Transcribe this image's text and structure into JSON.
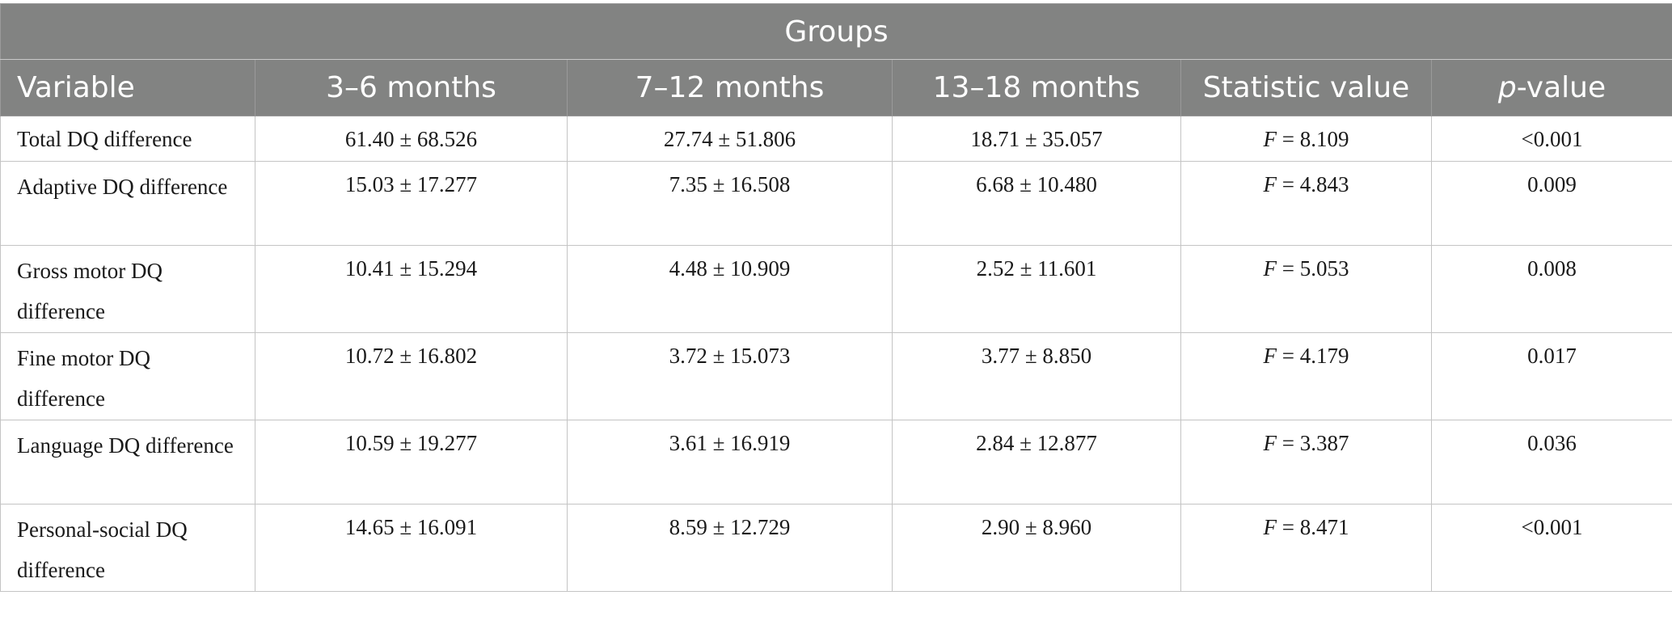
{
  "table": {
    "group_header": "Groups",
    "columns": [
      {
        "text": "Variable"
      },
      {
        "text": "3–6 months"
      },
      {
        "text": "7–12 months"
      },
      {
        "text": "13–18 months"
      },
      {
        "text": "Statistic value"
      },
      {
        "italic_prefix": "p",
        "text": "-value"
      }
    ],
    "rows": [
      {
        "variable": "Total DQ difference",
        "g1": "61.40 ± 68.526",
        "g2": "27.74 ± 51.806",
        "g3": "18.71 ± 35.057",
        "stat_symbol": "F",
        "stat": " = 8.109",
        "p": "<0.001"
      },
      {
        "variable": "Adaptive DQ difference",
        "g1": "15.03 ± 17.277",
        "g2": "7.35 ± 16.508",
        "g3": "6.68 ± 10.480",
        "stat_symbol": "F",
        "stat": " = 4.843",
        "p": "0.009"
      },
      {
        "variable": "Gross motor DQ difference",
        "g1": "10.41 ± 15.294",
        "g2": "4.48 ± 10.909",
        "g3": "2.52 ± 11.601",
        "stat_symbol": "F",
        "stat": " = 5.053",
        "p": "0.008"
      },
      {
        "variable": "Fine motor DQ difference",
        "g1": "10.72 ± 16.802",
        "g2": "3.72 ± 15.073",
        "g3": "3.77 ± 8.850",
        "stat_symbol": "F",
        "stat": " = 4.179",
        "p": "0.017"
      },
      {
        "variable": "Language DQ difference",
        "g1": "10.59 ± 19.277",
        "g2": "3.61 ± 16.919",
        "g3": "2.84 ± 12.877",
        "stat_symbol": "F",
        "stat": " = 3.387",
        "p": "0.036"
      },
      {
        "variable": "Personal-social DQ difference",
        "g1": "14.65 ± 16.091",
        "g2": "8.59 ± 12.729",
        "g3": "2.90 ± 8.960",
        "stat_symbol": "F",
        "stat": " = 8.471",
        "p": "<0.001"
      }
    ]
  },
  "colors": {
    "header_bg": "#828382",
    "header_text": "#ffffff",
    "grid": "#c4c4c4"
  }
}
